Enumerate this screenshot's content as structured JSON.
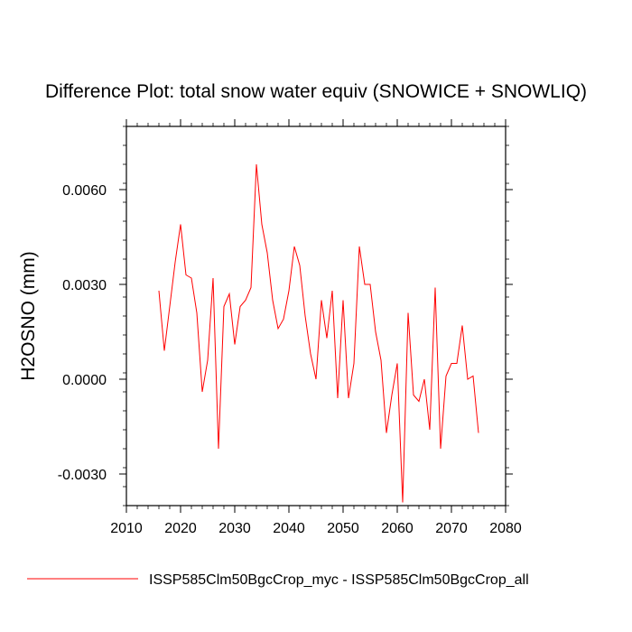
{
  "chart_data": {
    "type": "line",
    "title": "Difference Plot: total snow water equiv (SNOWICE + SNOWLIQ)",
    "xlabel": "",
    "ylabel": "H2OSNO  (mm)",
    "xlim": [
      2010,
      2080
    ],
    "ylim": [
      -0.004,
      0.008
    ],
    "xticks": [
      2010,
      2020,
      2030,
      2040,
      2050,
      2060,
      2070,
      2080
    ],
    "xtick_labels": [
      "2010",
      "2020",
      "2030",
      "2040",
      "2050",
      "2060",
      "2070",
      "2080"
    ],
    "yticks": [
      -0.003,
      0.0,
      0.003,
      0.006
    ],
    "ytick_labels": [
      "-0.0030",
      "0.0000",
      "0.0030",
      "0.0060"
    ],
    "grid": false,
    "legend_position": "bottom",
    "series": [
      {
        "name": "ISSP585Clm50BgcCrop_myc - ISSP585Clm50BgcCrop_all",
        "color": "#ff0000",
        "x": [
          2016,
          2017,
          2018,
          2019,
          2020,
          2021,
          2022,
          2023,
          2024,
          2025,
          2026,
          2027,
          2028,
          2029,
          2030,
          2031,
          2032,
          2033,
          2034,
          2035,
          2036,
          2037,
          2038,
          2039,
          2040,
          2041,
          2042,
          2043,
          2044,
          2045,
          2046,
          2047,
          2048,
          2049,
          2050,
          2051,
          2052,
          2053,
          2054,
          2055,
          2056,
          2057,
          2058,
          2059,
          2060,
          2061,
          2062,
          2063,
          2064,
          2065,
          2066,
          2067,
          2068,
          2069,
          2070,
          2071,
          2072,
          2073,
          2074,
          2075
        ],
        "values": [
          0.0028,
          0.0009,
          0.0023,
          0.0037,
          0.0049,
          0.0033,
          0.0032,
          0.0021,
          -0.0004,
          0.0006,
          0.0032,
          -0.0022,
          0.0023,
          0.0027,
          0.0011,
          0.0023,
          0.0025,
          0.0029,
          0.0068,
          0.0049,
          0.004,
          0.0025,
          0.0016,
          0.0019,
          0.0028,
          0.0042,
          0.0036,
          0.002,
          0.0008,
          0.0,
          0.0025,
          0.0013,
          0.0028,
          -0.0006,
          0.0025,
          -0.0006,
          0.0005,
          0.0042,
          0.003,
          0.003,
          0.0015,
          0.0006,
          -0.0017,
          -0.0005,
          0.0005,
          -0.0039,
          0.0021,
          -0.0005,
          -0.0007,
          0.0,
          -0.0016,
          0.0029,
          -0.0022,
          0.0001,
          0.0005,
          0.0005,
          0.0017,
          0.0,
          0.0001,
          -0.0017
        ]
      }
    ]
  }
}
